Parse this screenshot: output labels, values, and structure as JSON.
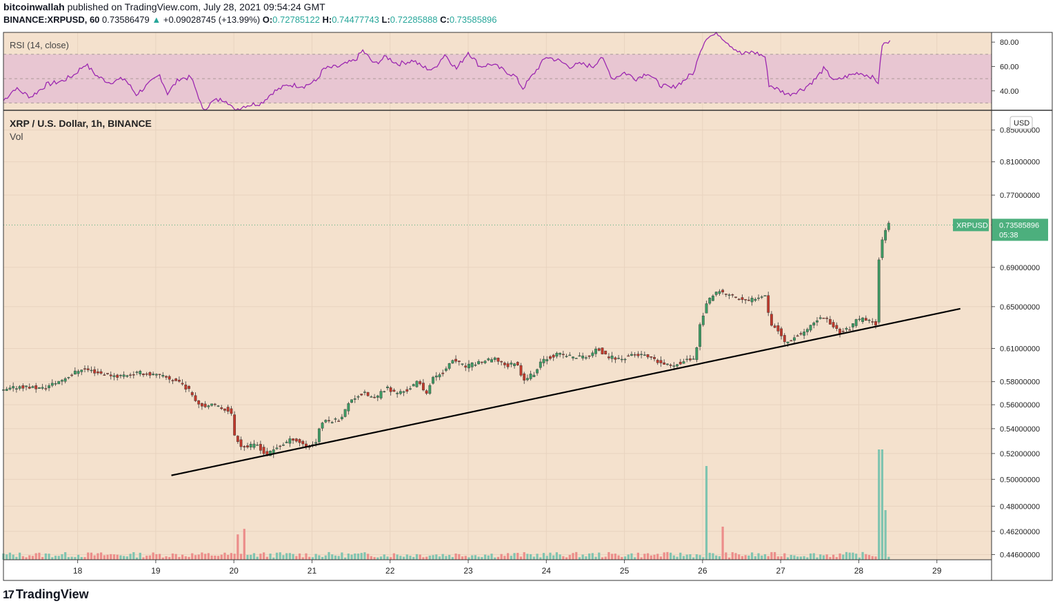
{
  "header": {
    "author": "bitcoinwallah",
    "published_text": "published on TradingView.com, July 28, 2021 09:54:24 GMT",
    "symbol": "BINANCE:XRPUSD, 60",
    "last": "0.73586479",
    "change_arrow": "▲",
    "change": "+0.09028745 (+13.99%)",
    "o_label": "O:",
    "o": "0.72785122",
    "h_label": "H:",
    "h": "0.74477743",
    "l_label": "L:",
    "l": "0.72285888",
    "c_label": "C:",
    "c": "0.73585896"
  },
  "footer": {
    "brand": "TradingView",
    "logo_icon": "tradingview-logo-icon"
  },
  "colors": {
    "background": "#f4e1cd",
    "up": "#3d9a63",
    "down": "#c0392b",
    "vol_up": "#7fc4b0",
    "vol_down": "#ec8d8a",
    "rsi_line": "#9c27b0",
    "rsi_band": "#e8c6d2",
    "trendline": "#000000",
    "price_tag": "#4caf7d"
  },
  "chart_data": {
    "type": "candlestick",
    "title": "XRP / U.S. Dollar, 1h, BINANCE",
    "volume_label": "Vol",
    "currency_label": "USD",
    "x_ticks": [
      "18",
      "19",
      "20",
      "21",
      "22",
      "23",
      "24",
      "25",
      "26",
      "27",
      "28",
      "29"
    ],
    "x_range": [
      17.05,
      29.7
    ],
    "y_ticks": [
      "0.85000000",
      "0.81000000",
      "0.77000000",
      "0.69000000",
      "0.65000000",
      "0.61000000",
      "0.58000000",
      "0.56000000",
      "0.54000000",
      "0.52000000",
      "0.50000000",
      "0.48000000",
      "0.46200000",
      "0.44600000"
    ],
    "y_scale": "log",
    "y_range": [
      0.4425,
      0.875
    ],
    "last_price": {
      "label": "XRPUSD",
      "value": "0.73585896",
      "countdown": "05:38"
    },
    "price_path": [
      [
        17.05,
        0.571
      ],
      [
        17.3,
        0.576
      ],
      [
        17.6,
        0.574
      ],
      [
        17.85,
        0.582
      ],
      [
        18.1,
        0.592
      ],
      [
        18.3,
        0.588
      ],
      [
        18.55,
        0.585
      ],
      [
        18.85,
        0.588
      ],
      [
        19.1,
        0.585
      ],
      [
        19.35,
        0.58
      ],
      [
        19.5,
        0.57
      ],
      [
        19.6,
        0.56
      ],
      [
        19.8,
        0.559
      ],
      [
        20.0,
        0.555
      ],
      [
        20.05,
        0.535
      ],
      [
        20.15,
        0.525
      ],
      [
        20.35,
        0.527
      ],
      [
        20.45,
        0.518
      ],
      [
        20.6,
        0.525
      ],
      [
        20.8,
        0.532
      ],
      [
        21.0,
        0.525
      ],
      [
        21.1,
        0.53
      ],
      [
        21.15,
        0.545
      ],
      [
        21.4,
        0.548
      ],
      [
        21.55,
        0.565
      ],
      [
        21.7,
        0.57
      ],
      [
        21.85,
        0.565
      ],
      [
        22.0,
        0.575
      ],
      [
        22.1,
        0.57
      ],
      [
        22.25,
        0.572
      ],
      [
        22.4,
        0.58
      ],
      [
        22.5,
        0.57
      ],
      [
        22.6,
        0.584
      ],
      [
        22.75,
        0.59
      ],
      [
        22.85,
        0.6
      ],
      [
        23.0,
        0.593
      ],
      [
        23.2,
        0.598
      ],
      [
        23.4,
        0.6
      ],
      [
        23.55,
        0.594
      ],
      [
        23.65,
        0.598
      ],
      [
        23.75,
        0.582
      ],
      [
        23.9,
        0.588
      ],
      [
        24.0,
        0.6
      ],
      [
        24.2,
        0.605
      ],
      [
        24.4,
        0.602
      ],
      [
        24.6,
        0.603
      ],
      [
        24.7,
        0.61
      ],
      [
        24.8,
        0.603
      ],
      [
        25.0,
        0.6
      ],
      [
        25.15,
        0.605
      ],
      [
        25.3,
        0.603
      ],
      [
        25.45,
        0.598
      ],
      [
        25.6,
        0.594
      ],
      [
        25.8,
        0.598
      ],
      [
        25.95,
        0.602
      ],
      [
        26.0,
        0.63
      ],
      [
        26.1,
        0.655
      ],
      [
        26.25,
        0.665
      ],
      [
        26.45,
        0.66
      ],
      [
        26.6,
        0.655
      ],
      [
        26.75,
        0.66
      ],
      [
        26.85,
        0.663
      ],
      [
        26.9,
        0.635
      ],
      [
        27.0,
        0.628
      ],
      [
        27.1,
        0.615
      ],
      [
        27.2,
        0.62
      ],
      [
        27.4,
        0.628
      ],
      [
        27.5,
        0.637
      ],
      [
        27.6,
        0.64
      ],
      [
        27.7,
        0.632
      ],
      [
        27.8,
        0.625
      ],
      [
        27.95,
        0.63
      ],
      [
        28.0,
        0.636
      ],
      [
        28.1,
        0.638
      ],
      [
        28.2,
        0.635
      ],
      [
        28.28,
        0.633
      ],
      [
        28.3,
        0.7
      ],
      [
        28.35,
        0.725
      ],
      [
        28.38,
        0.728
      ],
      [
        28.4,
        0.736
      ]
    ],
    "rsi": {
      "label": "RSI (14, close)",
      "y_ticks": [
        "80.00",
        "60.00",
        "40.00"
      ],
      "y_range": [
        24,
        88
      ],
      "bands": [
        30,
        50,
        70
      ],
      "values": [
        [
          17.05,
          32
        ],
        [
          17.2,
          42
        ],
        [
          17.4,
          35
        ],
        [
          17.6,
          45
        ],
        [
          17.8,
          48
        ],
        [
          17.95,
          53
        ],
        [
          18.1,
          62
        ],
        [
          18.25,
          52
        ],
        [
          18.4,
          47
        ],
        [
          18.6,
          50
        ],
        [
          18.75,
          37
        ],
        [
          18.9,
          45
        ],
        [
          19.05,
          53
        ],
        [
          19.15,
          38
        ],
        [
          19.3,
          50
        ],
        [
          19.45,
          51
        ],
        [
          19.55,
          35
        ],
        [
          19.6,
          24
        ],
        [
          19.75,
          32
        ],
        [
          19.9,
          33
        ],
        [
          20.0,
          24
        ],
        [
          20.15,
          28
        ],
        [
          20.35,
          30
        ],
        [
          20.5,
          39
        ],
        [
          20.7,
          45
        ],
        [
          20.9,
          44
        ],
        [
          21.05,
          48
        ],
        [
          21.15,
          58
        ],
        [
          21.35,
          60
        ],
        [
          21.55,
          65
        ],
        [
          21.65,
          73
        ],
        [
          21.8,
          62
        ],
        [
          21.95,
          68
        ],
        [
          22.1,
          62
        ],
        [
          22.3,
          65
        ],
        [
          22.4,
          60
        ],
        [
          22.55,
          57
        ],
        [
          22.7,
          70
        ],
        [
          22.85,
          58
        ],
        [
          23.0,
          72
        ],
        [
          23.15,
          60
        ],
        [
          23.3,
          62
        ],
        [
          23.45,
          57
        ],
        [
          23.6,
          52
        ],
        [
          23.7,
          42
        ],
        [
          23.85,
          55
        ],
        [
          24.0,
          68
        ],
        [
          24.15,
          65
        ],
        [
          24.3,
          60
        ],
        [
          24.45,
          62
        ],
        [
          24.6,
          60
        ],
        [
          24.7,
          68
        ],
        [
          24.85,
          50
        ],
        [
          25.0,
          55
        ],
        [
          25.15,
          50
        ],
        [
          25.3,
          55
        ],
        [
          25.45,
          45
        ],
        [
          25.6,
          42
        ],
        [
          25.75,
          48
        ],
        [
          25.9,
          56
        ],
        [
          25.95,
          70
        ],
        [
          26.05,
          84
        ],
        [
          26.2,
          87
        ],
        [
          26.35,
          78
        ],
        [
          26.5,
          70
        ],
        [
          26.65,
          72
        ],
        [
          26.8,
          68
        ],
        [
          26.85,
          45
        ],
        [
          27.0,
          40
        ],
        [
          27.1,
          37
        ],
        [
          27.3,
          42
        ],
        [
          27.45,
          50
        ],
        [
          27.55,
          58
        ],
        [
          27.7,
          48
        ],
        [
          27.85,
          52
        ],
        [
          28.0,
          55
        ],
        [
          28.15,
          52
        ],
        [
          28.25,
          47
        ],
        [
          28.3,
          78
        ],
        [
          28.4,
          80
        ]
      ]
    },
    "volume_highlights": [
      [
        20.05,
        0.23
      ],
      [
        20.12,
        0.28
      ],
      [
        26.05,
        0.85
      ],
      [
        26.25,
        0.3
      ],
      [
        28.28,
        1.0
      ],
      [
        28.33,
        0.45
      ]
    ]
  }
}
